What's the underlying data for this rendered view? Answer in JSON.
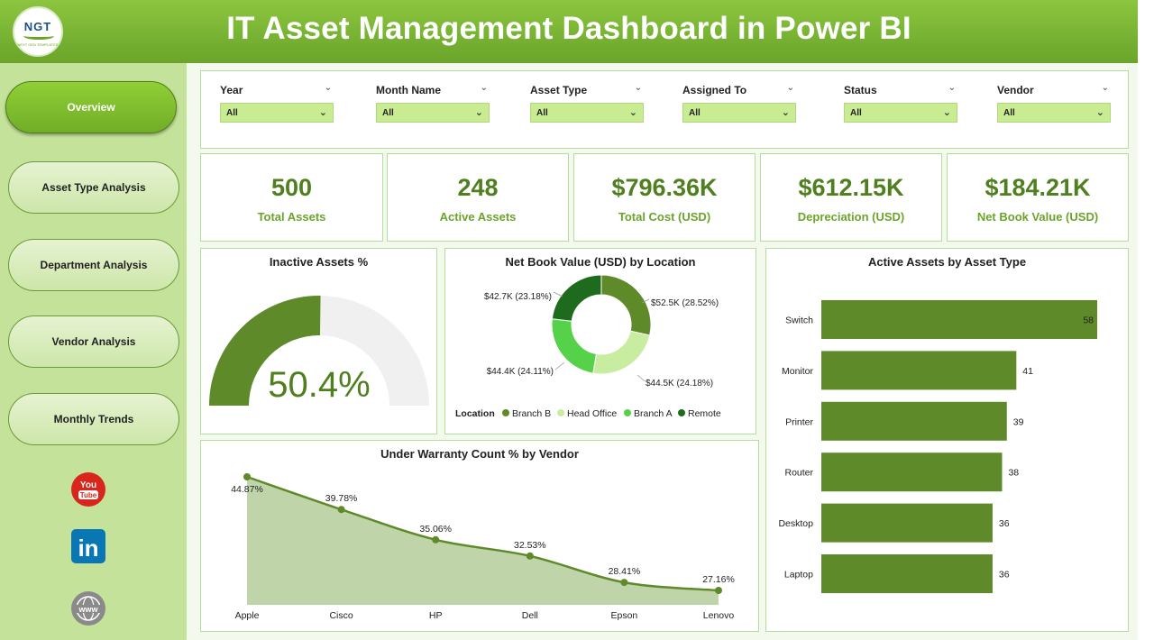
{
  "header": {
    "title": "IT Asset Management Dashboard in Power BI",
    "logo_text": "NGT",
    "logo_subtext": "NEXT GEN TEMPLATES"
  },
  "nav": [
    {
      "label": "Overview",
      "active": true
    },
    {
      "label": "Asset Type Analysis",
      "active": false
    },
    {
      "label": "Department Analysis",
      "active": false
    },
    {
      "label": "Vendor Analysis",
      "active": false
    },
    {
      "label": "Monthly Trends",
      "active": false
    }
  ],
  "social": {
    "youtube_top": "You",
    "youtube_bottom": "Tube",
    "linkedin": "in",
    "web": "www"
  },
  "filters": [
    {
      "label": "Year",
      "value": "All"
    },
    {
      "label": "Month Name",
      "value": "All"
    },
    {
      "label": "Asset Type",
      "value": "All"
    },
    {
      "label": "Assigned To",
      "value": "All"
    },
    {
      "label": "Status",
      "value": "All"
    },
    {
      "label": "Vendor",
      "value": "All"
    }
  ],
  "kpis": [
    {
      "value": "500",
      "label": "Total Assets"
    },
    {
      "value": "248",
      "label": "Active Assets"
    },
    {
      "value": "$796.36K",
      "label": "Total Cost (USD)"
    },
    {
      "value": "$612.15K",
      "label": "Depreciation (USD)"
    },
    {
      "value": "$184.21K",
      "label": "Net Book Value (USD)"
    }
  ],
  "colors": {
    "accent": "#6aa42a",
    "gauge_fill": "#5e8a2a",
    "gauge_track": "#f0f0f0",
    "bar": "#5e8a2a",
    "area_fill": "#bfd4a8",
    "area_line": "#5e8a2a"
  },
  "chart_data": [
    {
      "type": "gauge",
      "title": "Inactive Assets %",
      "value": 50.4,
      "max": 100,
      "label": "50.4%"
    },
    {
      "type": "pie",
      "title": "Net Book Value (USD) by Location",
      "legend_title": "Location",
      "legend_position": "bottom",
      "slices": [
        {
          "name": "Branch B",
          "value": 52.5,
          "label": "$52.5K (28.52%)",
          "color": "#5e8a2a"
        },
        {
          "name": "Head Office",
          "value": 44.5,
          "label": "$44.5K (24.18%)",
          "color": "#c8eda0"
        },
        {
          "name": "Branch A",
          "value": 44.4,
          "label": "$44.4K (24.11%)",
          "color": "#55d14a"
        },
        {
          "name": "Remote",
          "value": 42.7,
          "label": "$42.7K (23.18%)",
          "color": "#1e6b1e"
        }
      ]
    },
    {
      "type": "bar",
      "title": "Active Assets by Asset Type",
      "categories": [
        "Switch",
        "Monitor",
        "Printer",
        "Router",
        "Desktop",
        "Laptop"
      ],
      "values": [
        58,
        41,
        39,
        38,
        36,
        36
      ],
      "xlim": [
        0,
        58
      ]
    },
    {
      "type": "area",
      "title": "Under Warranty Count % by Vendor",
      "categories": [
        "Apple",
        "Cisco",
        "HP",
        "Dell",
        "Epson",
        "Lenovo"
      ],
      "values": [
        44.87,
        39.78,
        35.06,
        32.53,
        28.41,
        27.16
      ],
      "labels": [
        "44.87%",
        "39.78%",
        "35.06%",
        "32.53%",
        "28.41%",
        "27.16%"
      ],
      "ylim": [
        0,
        48
      ]
    }
  ]
}
